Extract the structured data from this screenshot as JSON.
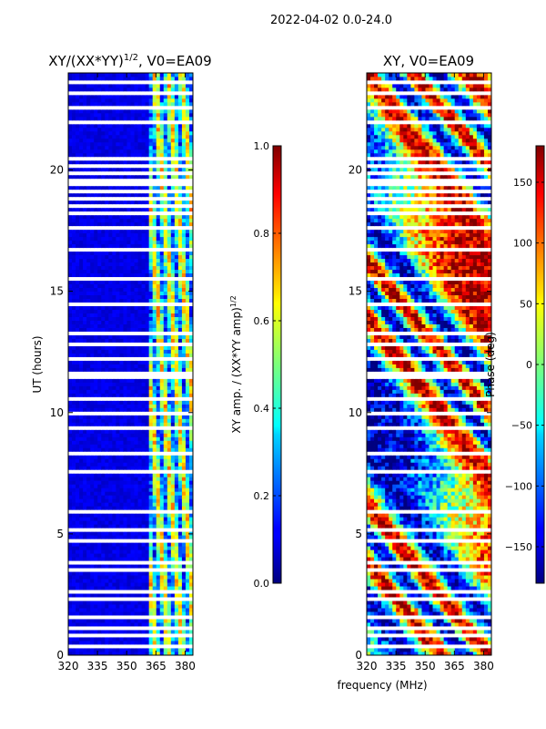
{
  "suptitle": "2022-04-02 0.0-24.0",
  "chart_data": [
    {
      "type": "heatmap",
      "title": "XY/(XX*YY)^1/2, V0=EA09",
      "title_main": "XY/(XX*YY)",
      "title_exp": "1/2",
      "title_tail": ", V0=EA09",
      "xlabel": "",
      "ylabel": "UT (hours)",
      "xlim": [
        320,
        384
      ],
      "ylim": [
        0,
        24
      ],
      "xticks": [
        320,
        335,
        350,
        365,
        380
      ],
      "yticks": [
        0,
        5,
        10,
        15,
        20
      ],
      "colormap": "jet",
      "colorbar": {
        "label": "XY amp. / (XX*YY amp)^1/2",
        "label_main": "XY amp. / (XX*YY amp)",
        "label_exp": "1/2",
        "range": [
          0.0,
          1.0
        ],
        "ticks": [
          "0.0",
          "0.2",
          "0.4",
          "0.6",
          "0.8",
          "1.0"
        ],
        "tick_values": [
          0.0,
          0.2,
          0.4,
          0.6,
          0.8,
          1.0
        ]
      }
    },
    {
      "type": "heatmap",
      "title": "XY, V0=EA09",
      "xlabel": "frequency (MHz)",
      "ylabel": "",
      "xlim": [
        320,
        384
      ],
      "ylim": [
        0,
        24
      ],
      "xticks": [
        320,
        335,
        350,
        365,
        380
      ],
      "yticks": [
        0,
        5,
        10,
        15,
        20
      ],
      "colormap": "jet",
      "colorbar": {
        "label": "Phase (deg)",
        "range": [
          -180,
          180
        ],
        "ticks": [
          "−150",
          "−100",
          "−50",
          "0",
          "50",
          "100",
          "150"
        ],
        "tick_values": [
          -150,
          -100,
          -50,
          0,
          50,
          100,
          150
        ]
      }
    }
  ],
  "flagged_hours": [
    [
      0.35,
      0.45
    ],
    [
      0.75,
      0.85
    ],
    [
      1.05,
      1.15
    ],
    [
      1.5,
      1.6
    ],
    [
      1.9,
      2.0
    ],
    [
      2.25,
      2.35
    ],
    [
      2.6,
      2.7
    ],
    [
      3.1,
      3.2
    ],
    [
      3.45,
      3.55
    ],
    [
      3.75,
      3.85
    ],
    [
      4.7,
      4.85
    ],
    [
      5.1,
      5.2
    ],
    [
      5.9,
      6.0
    ],
    [
      6.55,
      6.65
    ],
    [
      7.5,
      7.6
    ],
    [
      8.25,
      8.35
    ],
    [
      8.95,
      9.05
    ],
    [
      9.35,
      9.45
    ],
    [
      9.95,
      10.05
    ],
    [
      10.55,
      10.65
    ],
    [
      11.35,
      11.65
    ],
    [
      12.15,
      12.25
    ],
    [
      12.4,
      12.5
    ],
    [
      12.75,
      12.85
    ],
    [
      13.25,
      13.35
    ],
    [
      13.6,
      13.7
    ],
    [
      14.05,
      14.15
    ],
    [
      14.45,
      14.55
    ],
    [
      14.8,
      14.9
    ],
    [
      15.1,
      15.2
    ],
    [
      15.45,
      15.55
    ],
    [
      15.7,
      15.8
    ],
    [
      16.15,
      16.25
    ],
    [
      16.65,
      16.75
    ],
    [
      17.05,
      17.15
    ],
    [
      17.55,
      17.65
    ],
    [
      18.2,
      18.3
    ],
    [
      18.45,
      18.55
    ],
    [
      18.75,
      18.85
    ],
    [
      19.05,
      19.15
    ],
    [
      19.35,
      19.45
    ],
    [
      19.55,
      19.65
    ],
    [
      19.85,
      19.95
    ],
    [
      20.1,
      20.2
    ],
    [
      20.4,
      20.5
    ],
    [
      21.1,
      21.2
    ],
    [
      21.95,
      22.05
    ],
    [
      22.55,
      22.65
    ],
    [
      23.1,
      23.2
    ],
    [
      23.6,
      23.7
    ]
  ]
}
